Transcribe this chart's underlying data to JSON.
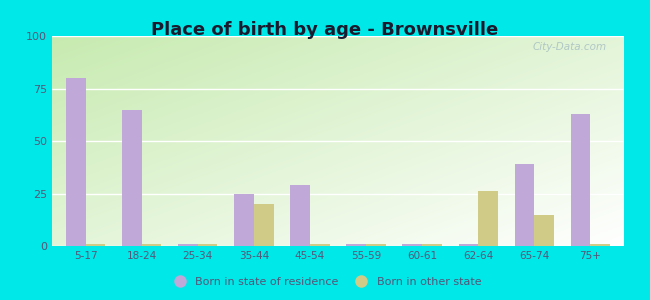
{
  "title": "Place of birth by age - Brownsville",
  "categories": [
    "5-17",
    "18-24",
    "25-34",
    "35-44",
    "45-54",
    "55-59",
    "60-61",
    "62-64",
    "65-74",
    "75+"
  ],
  "purple_values": [
    80,
    65,
    1,
    25,
    29,
    1,
    1,
    1,
    39,
    63
  ],
  "tan_values": [
    1,
    1,
    1,
    20,
    1,
    1,
    1,
    26,
    15,
    1
  ],
  "purple_color": "#c0a8d8",
  "tan_color": "#d0cc88",
  "background_outer": "#00e8e8",
  "ylim": [
    0,
    100
  ],
  "yticks": [
    0,
    25,
    50,
    75,
    100
  ],
  "legend_purple": "Born in state of residence",
  "legend_tan": "Born in other state",
  "bar_width": 0.35,
  "title_fontsize": 13,
  "title_color": "#1a1a2e",
  "tick_color": "#555577",
  "watermark": "City-Data.com"
}
